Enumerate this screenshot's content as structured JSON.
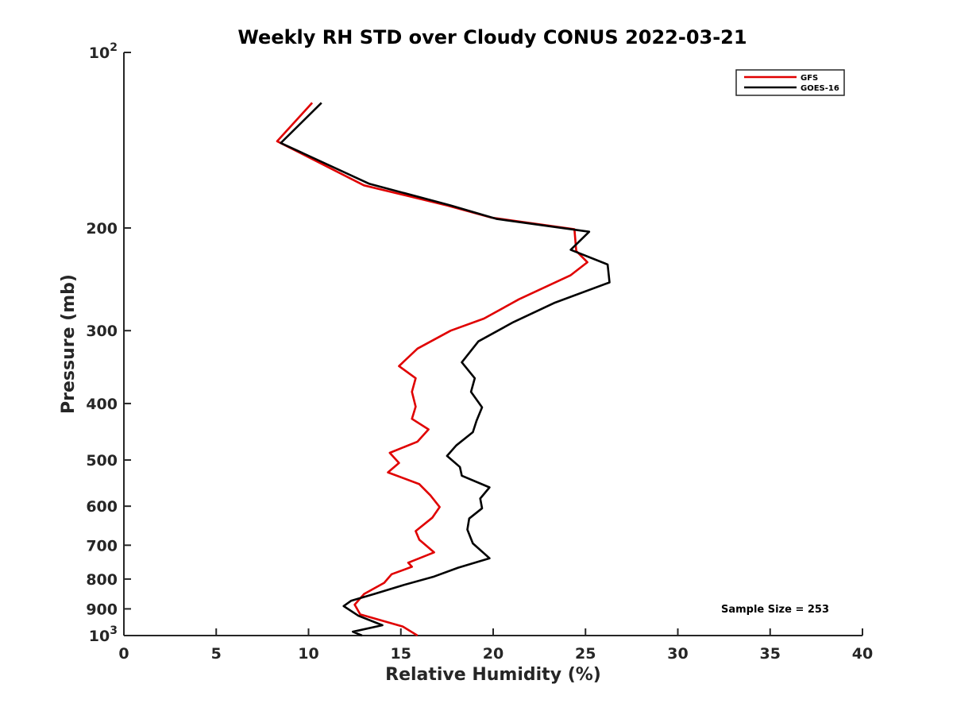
{
  "chart_data": {
    "type": "line",
    "title": "Weekly RH STD over Cloudy CONUS 2022-03-21",
    "xlabel": "Relative Humidity (%)",
    "ylabel": "Pressure (mb)",
    "xlim": [
      0,
      40
    ],
    "ylim": [
      1000,
      100
    ],
    "y_scale": "log",
    "y_reversed": true,
    "grid": false,
    "legend_position": "top-right",
    "x_ticks": [
      0,
      5,
      10,
      15,
      20,
      25,
      30,
      35,
      40
    ],
    "y_ticks": [
      {
        "value": 100,
        "base": "10",
        "exp": "2"
      },
      {
        "value": 200,
        "label": "200"
      },
      {
        "value": 300,
        "label": "300"
      },
      {
        "value": 400,
        "label": "400"
      },
      {
        "value": 500,
        "label": "500"
      },
      {
        "value": 600,
        "label": "600"
      },
      {
        "value": 700,
        "label": "700"
      },
      {
        "value": 800,
        "label": "800"
      },
      {
        "value": 900,
        "label": "900"
      },
      {
        "value": 1000,
        "base": "10",
        "exp": "3"
      }
    ],
    "annotation": "Sample Size = 253",
    "series": [
      {
        "name": "GFS",
        "color": "#e00000",
        "points": [
          [
            10.2,
            122
          ],
          [
            8.3,
            142
          ],
          [
            13.0,
            169
          ],
          [
            17.5,
            183
          ],
          [
            19.9,
            192
          ],
          [
            24.4,
            201
          ],
          [
            24.5,
            219
          ],
          [
            25.1,
            229
          ],
          [
            24.2,
            241
          ],
          [
            21.4,
            265
          ],
          [
            19.5,
            286
          ],
          [
            17.7,
            300
          ],
          [
            15.9,
            322
          ],
          [
            14.9,
            345
          ],
          [
            15.8,
            362
          ],
          [
            15.6,
            382
          ],
          [
            15.8,
            405
          ],
          [
            15.6,
            425
          ],
          [
            16.5,
            443
          ],
          [
            15.9,
            465
          ],
          [
            14.4,
            486
          ],
          [
            14.9,
            506
          ],
          [
            14.3,
            525
          ],
          [
            16.0,
            550
          ],
          [
            16.6,
            575
          ],
          [
            17.1,
            602
          ],
          [
            16.7,
            628
          ],
          [
            15.8,
            662
          ],
          [
            16.0,
            685
          ],
          [
            16.8,
            720
          ],
          [
            15.4,
            750
          ],
          [
            15.6,
            762
          ],
          [
            14.5,
            785
          ],
          [
            14.1,
            812
          ],
          [
            13.0,
            849
          ],
          [
            12.5,
            885
          ],
          [
            12.8,
            920
          ],
          [
            15.1,
            965
          ],
          [
            15.9,
            1000
          ]
        ]
      },
      {
        "name": "GOES-16",
        "color": "#000000",
        "points": [
          [
            10.7,
            122
          ],
          [
            8.5,
            143
          ],
          [
            13.3,
            168
          ],
          [
            17.7,
            183
          ],
          [
            20.2,
            193
          ],
          [
            25.2,
            203
          ],
          [
            24.2,
            218
          ],
          [
            26.2,
            231
          ],
          [
            26.3,
            248
          ],
          [
            23.3,
            269
          ],
          [
            21.1,
            290
          ],
          [
            19.2,
            313
          ],
          [
            18.3,
            340
          ],
          [
            19.0,
            362
          ],
          [
            18.8,
            382
          ],
          [
            19.4,
            406
          ],
          [
            19.1,
            428
          ],
          [
            18.9,
            448
          ],
          [
            18.0,
            472
          ],
          [
            17.5,
            492
          ],
          [
            18.2,
            514
          ],
          [
            18.3,
            532
          ],
          [
            19.8,
            557
          ],
          [
            19.3,
            582
          ],
          [
            19.4,
            605
          ],
          [
            18.7,
            630
          ],
          [
            18.6,
            658
          ],
          [
            18.9,
            695
          ],
          [
            19.8,
            737
          ],
          [
            18.1,
            765
          ],
          [
            16.8,
            792
          ],
          [
            15.1,
            820
          ],
          [
            13.6,
            848
          ],
          [
            12.3,
            872
          ],
          [
            11.9,
            890
          ],
          [
            12.7,
            925
          ],
          [
            14.0,
            960
          ],
          [
            12.4,
            985
          ],
          [
            12.9,
            1000
          ]
        ]
      }
    ]
  }
}
